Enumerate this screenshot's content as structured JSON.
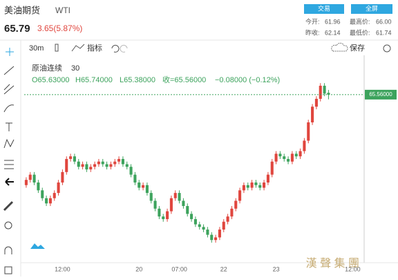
{
  "header": {
    "name": "美油期货",
    "code": "WTI",
    "price": "65.79",
    "change": "3.65(5.87%)",
    "buttons": [
      "交易",
      "全屏"
    ],
    "stats": [
      [
        "今开:",
        "61.96",
        "最高价:",
        "66.00"
      ],
      [
        "昨收:",
        "62.14",
        "最低价:",
        "61.74"
      ]
    ]
  },
  "toolbar": {
    "interval": "30m",
    "indicator": "指标",
    "save": "保存"
  },
  "legend": {
    "name": "原油连续",
    "interval": "30",
    "open": "O65.63000",
    "high": "H65.74000",
    "low": "L65.38000",
    "close": "收=65.56000",
    "change": "−0.08000 (−0.12%)"
  },
  "watermark": "漢 聲 集 團",
  "chart_data": {
    "type": "candlestick",
    "up_color": "#e0463e",
    "down_color": "#3da35d",
    "categories": [
      null,
      null,
      null,
      null,
      null,
      null,
      null,
      null,
      null,
      "12:00",
      null,
      null,
      null,
      null,
      null,
      null,
      null,
      null,
      null,
      null,
      null,
      null,
      null,
      null,
      null,
      null,
      null,
      null,
      "20",
      null,
      null,
      null,
      null,
      null,
      null,
      null,
      null,
      null,
      "07:00",
      null,
      null,
      null,
      null,
      null,
      null,
      null,
      null,
      null,
      null,
      "22",
      null,
      null,
      null,
      null,
      null,
      null,
      null,
      null,
      null,
      null,
      null,
      null,
      "23",
      null,
      null,
      null,
      null,
      null,
      null,
      null,
      null,
      null,
      null,
      null,
      null,
      null,
      null,
      null,
      null,
      null,
      null,
      "12:00",
      null,
      null
    ],
    "open": [
      62.1,
      62.3,
      62.5,
      62.2,
      61.9,
      61.6,
      61.4,
      61.6,
      61.8,
      62.2,
      62.6,
      63.1,
      63.2,
      63.0,
      62.8,
      62.9,
      62.7,
      62.8,
      62.9,
      63.0,
      62.9,
      62.8,
      62.9,
      63.0,
      63.1,
      62.9,
      62.8,
      62.5,
      62.2,
      62.0,
      62.1,
      61.8,
      61.5,
      61.2,
      60.9,
      60.8,
      61.1,
      61.6,
      61.8,
      61.5,
      61.3,
      61.0,
      60.8,
      60.6,
      60.5,
      60.4,
      60.2,
      60.0,
      60.1,
      60.4,
      60.7,
      60.9,
      61.2,
      61.5,
      61.9,
      62.1,
      62.0,
      62.2,
      62.1,
      62.0,
      62.2,
      62.5,
      63.0,
      63.3,
      63.2,
      63.1,
      63.0,
      63.3,
      63.2,
      63.4,
      63.8,
      64.5,
      65.1,
      65.4,
      65.9,
      65.63,
      null,
      null,
      null,
      null,
      null,
      null,
      null,
      null
    ],
    "high": [
      62.4,
      62.6,
      62.6,
      62.3,
      62.0,
      61.7,
      61.7,
      61.9,
      62.3,
      62.7,
      63.2,
      63.3,
      63.3,
      63.1,
      63.0,
      63.0,
      62.9,
      63.0,
      63.1,
      63.1,
      63.0,
      63.0,
      63.1,
      63.2,
      63.2,
      63.0,
      62.9,
      62.6,
      62.3,
      62.2,
      62.2,
      61.9,
      61.6,
      61.3,
      61.0,
      61.2,
      61.7,
      61.9,
      61.9,
      61.6,
      61.4,
      61.1,
      60.9,
      60.7,
      60.6,
      60.5,
      60.3,
      60.2,
      60.5,
      60.8,
      61.0,
      61.3,
      61.6,
      62.0,
      62.2,
      62.2,
      62.3,
      62.3,
      62.2,
      62.3,
      62.6,
      63.1,
      63.4,
      63.4,
      63.3,
      63.2,
      63.4,
      63.4,
      63.5,
      63.9,
      64.6,
      65.2,
      65.5,
      66.0,
      66.0,
      65.74,
      null,
      null,
      null,
      null,
      null,
      null,
      null,
      null
    ],
    "low": [
      62.0,
      62.2,
      62.1,
      61.8,
      61.5,
      61.3,
      61.3,
      61.5,
      61.7,
      62.1,
      62.5,
      63.0,
      62.9,
      62.7,
      62.7,
      62.6,
      62.6,
      62.7,
      62.8,
      62.8,
      62.7,
      62.7,
      62.8,
      62.9,
      62.8,
      62.7,
      62.4,
      62.1,
      61.9,
      61.9,
      61.7,
      61.4,
      61.1,
      60.8,
      60.7,
      60.7,
      61.0,
      61.5,
      61.4,
      61.2,
      60.9,
      60.7,
      60.5,
      60.4,
      60.3,
      60.1,
      59.9,
      59.9,
      60.0,
      60.3,
      60.6,
      60.8,
      61.1,
      61.4,
      61.8,
      61.9,
      61.9,
      62.0,
      61.9,
      61.9,
      62.1,
      62.4,
      62.9,
      63.1,
      63.0,
      62.9,
      62.9,
      63.1,
      63.1,
      63.3,
      63.7,
      64.4,
      65.0,
      65.3,
      65.5,
      65.38,
      null,
      null,
      null,
      null,
      null,
      null,
      null,
      null
    ],
    "close": [
      62.3,
      62.5,
      62.2,
      61.9,
      61.6,
      61.4,
      61.6,
      61.8,
      62.2,
      62.6,
      63.1,
      63.2,
      63.0,
      62.8,
      62.9,
      62.7,
      62.8,
      62.9,
      63.0,
      62.9,
      62.8,
      62.9,
      63.0,
      63.1,
      62.9,
      62.8,
      62.5,
      62.2,
      62.0,
      62.1,
      61.8,
      61.5,
      61.2,
      60.9,
      60.8,
      61.1,
      61.6,
      61.8,
      61.5,
      61.3,
      61.0,
      60.8,
      60.6,
      60.5,
      60.4,
      60.2,
      60.0,
      60.1,
      60.4,
      60.7,
      60.9,
      61.2,
      61.5,
      61.9,
      62.1,
      62.0,
      62.2,
      62.1,
      62.0,
      62.2,
      62.5,
      63.0,
      63.3,
      63.2,
      63.1,
      63.0,
      63.3,
      63.2,
      63.4,
      63.8,
      64.5,
      65.1,
      65.4,
      65.9,
      65.6,
      65.56,
      null,
      null,
      null,
      null,
      null,
      null,
      null,
      null
    ],
    "ylim": [
      59.0,
      66.8
    ],
    "price_line": {
      "value": 65.56,
      "label": "65.56000"
    }
  }
}
